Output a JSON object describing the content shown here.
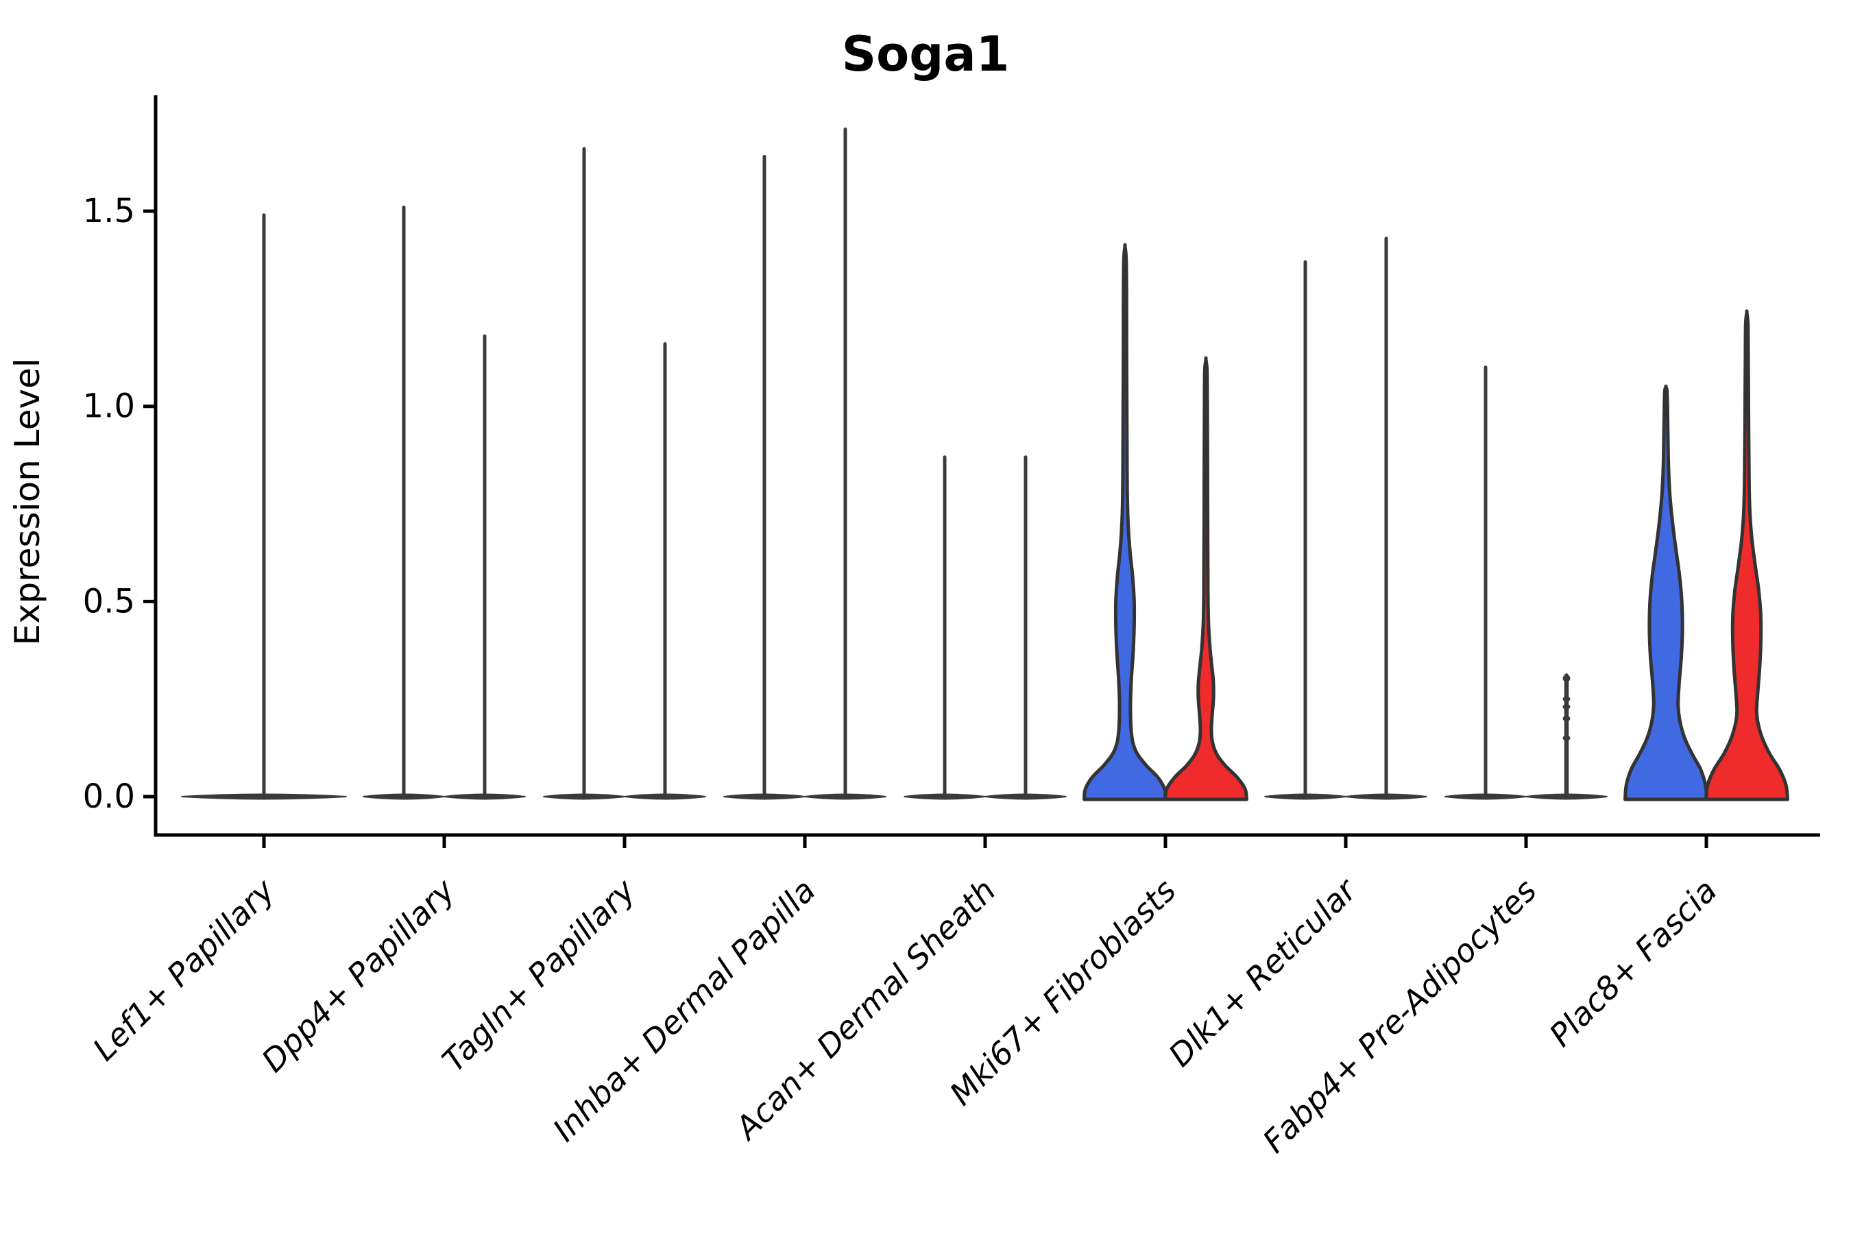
{
  "chart_data": {
    "type": "violin",
    "title": "Soga1",
    "ylabel": "Expression Level",
    "xlabel": "",
    "ytick_labels": [
      "0.0",
      "0.5",
      "1.0",
      "1.5"
    ],
    "ytick_values": [
      0.0,
      0.5,
      1.0,
      1.5
    ],
    "ylim": [
      -0.08,
      1.8
    ],
    "grid": false,
    "legend": "none",
    "x_label_rotation_deg": 45,
    "colors": {
      "left_group": "#4169E1",
      "right_group": "#F02B2B",
      "flat_violin": "#3a3a3a",
      "violin_outline": "#333333",
      "axis": "#000000"
    },
    "categories": [
      "Lef1+ Papillary",
      "Dpp4+ Papillary",
      "Tagln+ Papillary",
      "Inhba+ Dermal Papilla",
      "Acan+ Dermal Sheath",
      "Mki67+ Fibroblasts",
      "Dlk1+ Reticular",
      "Fabp4+ Pre-Adipocytes",
      "Plac8+ Fascia"
    ],
    "violins": [
      {
        "category": "Lef1+ Papillary",
        "items": [
          {
            "side": "full",
            "max": 1.49,
            "style": "flat"
          }
        ]
      },
      {
        "category": "Dpp4+ Papillary",
        "items": [
          {
            "side": "left",
            "max": 1.51,
            "style": "flat"
          },
          {
            "side": "right",
            "max": 1.18,
            "style": "flat"
          }
        ]
      },
      {
        "category": "Tagln+ Papillary",
        "items": [
          {
            "side": "left",
            "max": 1.66,
            "style": "flat"
          },
          {
            "side": "right",
            "max": 1.16,
            "style": "flat"
          }
        ]
      },
      {
        "category": "Inhba+ Dermal Papilla",
        "items": [
          {
            "side": "left",
            "max": 1.64,
            "style": "flat"
          },
          {
            "side": "right",
            "max": 1.71,
            "style": "flat"
          }
        ]
      },
      {
        "category": "Acan+ Dermal Sheath",
        "items": [
          {
            "side": "left",
            "max": 0.87,
            "style": "flat"
          },
          {
            "side": "right",
            "max": 0.87,
            "style": "flat"
          }
        ]
      },
      {
        "category": "Mki67+ Fibroblasts",
        "items": [
          {
            "side": "left",
            "max": 1.41,
            "style": "body",
            "color": "#4169E1",
            "profile": [
              [
                0,
                1.0
              ],
              [
                0.02,
                0.97
              ],
              [
                0.05,
                0.8
              ],
              [
                0.08,
                0.52
              ],
              [
                0.11,
                0.3
              ],
              [
                0.14,
                0.19
              ],
              [
                0.18,
                0.145
              ],
              [
                0.24,
                0.135
              ],
              [
                0.3,
                0.155
              ],
              [
                0.37,
                0.2
              ],
              [
                0.44,
                0.225
              ],
              [
                0.5,
                0.225
              ],
              [
                0.56,
                0.19
              ],
              [
                0.62,
                0.13
              ],
              [
                0.68,
                0.085
              ],
              [
                0.75,
                0.06
              ],
              [
                0.85,
                0.05
              ],
              [
                1.0,
                0.045
              ],
              [
                1.15,
                0.04
              ],
              [
                1.3,
                0.038
              ],
              [
                1.38,
                0.028
              ],
              [
                1.41,
                0.0
              ]
            ]
          },
          {
            "side": "right",
            "max": 1.12,
            "style": "body",
            "color": "#F02B2B",
            "profile": [
              [
                0,
                1.0
              ],
              [
                0.02,
                0.96
              ],
              [
                0.05,
                0.76
              ],
              [
                0.08,
                0.47
              ],
              [
                0.11,
                0.26
              ],
              [
                0.14,
                0.16
              ],
              [
                0.17,
                0.135
              ],
              [
                0.21,
                0.155
              ],
              [
                0.25,
                0.185
              ],
              [
                0.29,
                0.185
              ],
              [
                0.33,
                0.15
              ],
              [
                0.38,
                0.1
              ],
              [
                0.44,
                0.065
              ],
              [
                0.52,
                0.05
              ],
              [
                0.65,
                0.045
              ],
              [
                0.85,
                0.04
              ],
              [
                1.0,
                0.036
              ],
              [
                1.09,
                0.028
              ],
              [
                1.12,
                0.0
              ]
            ]
          }
        ]
      },
      {
        "category": "Dlk1+ Reticular",
        "items": [
          {
            "side": "left",
            "max": 1.37,
            "style": "flat"
          },
          {
            "side": "right",
            "max": 1.43,
            "style": "flat"
          }
        ]
      },
      {
        "category": "Fabp4+ Pre-Adipocytes",
        "items": [
          {
            "side": "left",
            "max": 1.1,
            "style": "flat"
          },
          {
            "side": "right",
            "max": 0.31,
            "style": "dotted",
            "dots": [
              0.25,
              0.23,
              0.2,
              0.15
            ]
          }
        ]
      },
      {
        "category": "Plac8+ Fascia",
        "items": [
          {
            "side": "left",
            "max": 1.05,
            "style": "body",
            "color": "#4169E1",
            "profile": [
              [
                0,
                1.0
              ],
              [
                0.03,
                0.97
              ],
              [
                0.07,
                0.85
              ],
              [
                0.11,
                0.64
              ],
              [
                0.15,
                0.46
              ],
              [
                0.19,
                0.35
              ],
              [
                0.235,
                0.3
              ],
              [
                0.29,
                0.325
              ],
              [
                0.36,
                0.38
              ],
              [
                0.43,
                0.405
              ],
              [
                0.5,
                0.39
              ],
              [
                0.57,
                0.33
              ],
              [
                0.63,
                0.25
              ],
              [
                0.7,
                0.165
              ],
              [
                0.77,
                0.1
              ],
              [
                0.84,
                0.065
              ],
              [
                0.92,
                0.05
              ],
              [
                1.0,
                0.038
              ],
              [
                1.04,
                0.025
              ],
              [
                1.05,
                0.0
              ]
            ]
          },
          {
            "side": "right",
            "max": 1.24,
            "style": "body",
            "color": "#F02B2B",
            "profile": [
              [
                0,
                1.0
              ],
              [
                0.03,
                0.96
              ],
              [
                0.07,
                0.8
              ],
              [
                0.11,
                0.56
              ],
              [
                0.15,
                0.38
              ],
              [
                0.19,
                0.27
              ],
              [
                0.22,
                0.24
              ],
              [
                0.27,
                0.27
              ],
              [
                0.33,
                0.315
              ],
              [
                0.4,
                0.345
              ],
              [
                0.47,
                0.34
              ],
              [
                0.53,
                0.29
              ],
              [
                0.59,
                0.21
              ],
              [
                0.65,
                0.135
              ],
              [
                0.71,
                0.085
              ],
              [
                0.78,
                0.06
              ],
              [
                0.88,
                0.05
              ],
              [
                1.0,
                0.042
              ],
              [
                1.12,
                0.036
              ],
              [
                1.21,
                0.028
              ],
              [
                1.24,
                0.0
              ]
            ]
          }
        ]
      }
    ]
  }
}
